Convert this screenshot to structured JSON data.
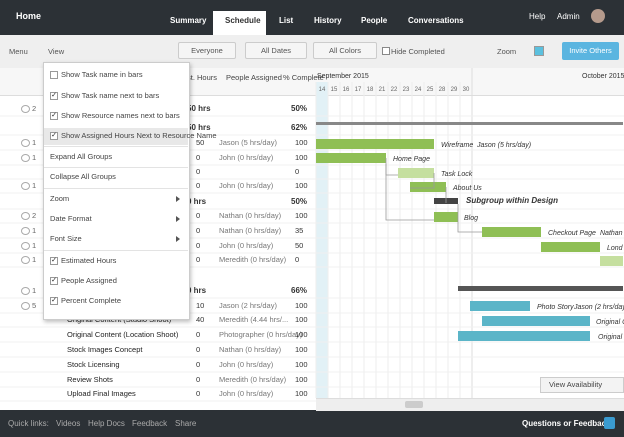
{
  "nav": {
    "home": "Home",
    "tabs": [
      "Summary",
      "Schedule",
      "List",
      "History",
      "People",
      "Conversations"
    ],
    "help": "Help",
    "admin": "Admin"
  },
  "toolbar": {
    "menu": "Menu",
    "view": "View",
    "everyone": "Everyone",
    "dates": "All Dates",
    "colors": "All Colors",
    "hide": "Hide Completed",
    "zoom": "Zoom",
    "invite": "Invite Others"
  },
  "table": {
    "headers": [
      "st. Hours",
      "People Assigned",
      "% Complete"
    ],
    "rows": [
      {
        "marker": "2",
        "hours": "50 hrs",
        "pct": "50%",
        "bold": true
      },
      {
        "hours": "50 hrs",
        "pct": "62%",
        "bold": true
      },
      {
        "marker": "1",
        "hours": "50",
        "people": "Jason (5 hrs/day)",
        "pct": "100"
      },
      {
        "marker": "1",
        "hours": "0",
        "people": "John (0 hrs/day)",
        "pct": "100"
      },
      {
        "hours": "0",
        "pct": "0"
      },
      {
        "marker": "1",
        "hours": "0",
        "people": "John (0 hrs/day)",
        "pct": "100"
      },
      {
        "hours": "0 hrs",
        "pct": "50%",
        "bold": true
      },
      {
        "marker": "2",
        "hours": "0",
        "people": "Nathan (0 hrs/day)",
        "pct": "100"
      },
      {
        "marker": "1",
        "hours": "0",
        "people": "Nathan (0 hrs/day)",
        "pct": "35"
      },
      {
        "marker": "1",
        "hours": "0",
        "people": "John (0 hrs/day)",
        "pct": "50"
      },
      {
        "marker": "1",
        "hours": "0",
        "people": "Meredith (0 hrs/day)",
        "pct": "0"
      },
      {
        "marker": "1",
        "hours": "0 hrs",
        "pct": "66%",
        "bold": true
      },
      {
        "marker": "5",
        "hours": "10",
        "people": "Jason (2 hrs/day)",
        "pct": "100"
      },
      {
        "name": "Original Content (Studio Shoot)",
        "hours": "40",
        "people": "Meredith (4.44 hrs/...",
        "pct": "100"
      },
      {
        "name": "Original Content (Location Shoot)",
        "hours": "0",
        "people": "Photographer (0 hrs/day)",
        "pct": "100"
      },
      {
        "name": "Stock Images Concept",
        "hours": "0",
        "people": "Nathan (0 hrs/day)",
        "pct": "100"
      },
      {
        "name": "Stock Licensing",
        "hours": "0",
        "people": "John (0 hrs/day)",
        "pct": "100"
      },
      {
        "name": "Review Shots",
        "hours": "0",
        "people": "Meredith (0 hrs/day)",
        "pct": "100"
      },
      {
        "name": "Upload Final Images",
        "hours": "0",
        "people": "John (0 hrs/day)",
        "pct": "100"
      }
    ]
  },
  "timeline": {
    "months": [
      "September 2015",
      "October 2015"
    ],
    "days": [
      "14",
      "15",
      "16",
      "17",
      "18",
      "21",
      "22",
      "23",
      "24",
      "25",
      "28",
      "29",
      "30"
    ]
  },
  "menu": {
    "items": [
      {
        "label": "Show Task name in bars",
        "checked": false
      },
      {
        "label": "Show Task name next to bars",
        "checked": true
      },
      {
        "label": "Show Resource names next to bars",
        "checked": true
      },
      {
        "label": "Show Assigned Hours Next to Resource Name",
        "checked": true
      },
      {
        "label": "Expand All Groups"
      },
      {
        "label": "Collapse All Groups"
      },
      {
        "label": "Zoom",
        "submenu": true
      },
      {
        "label": "Date Format",
        "submenu": true
      },
      {
        "label": "Font Size",
        "submenu": true
      },
      {
        "label": "Estimated Hours",
        "checked": true
      },
      {
        "label": "People Assigned",
        "checked": true
      },
      {
        "label": "Percent Complete",
        "checked": true
      }
    ]
  },
  "gantt_labels": [
    "Wireframe",
    "Jason (5 hrs/day)",
    "Home Page",
    "Task Lock",
    "About Us",
    "Subgroup within Design",
    "Blog",
    "Checkout Page",
    "Nathan",
    "Lond",
    "Photo Story",
    "Jason (2 hrs/day)",
    "Original C",
    "Original C"
  ],
  "view_availability": "View Availability",
  "footer": {
    "links": [
      "Quick links:",
      "Videos",
      "Help Docs",
      "Feedback",
      "Share"
    ],
    "questions": "Questions or Feedback"
  }
}
